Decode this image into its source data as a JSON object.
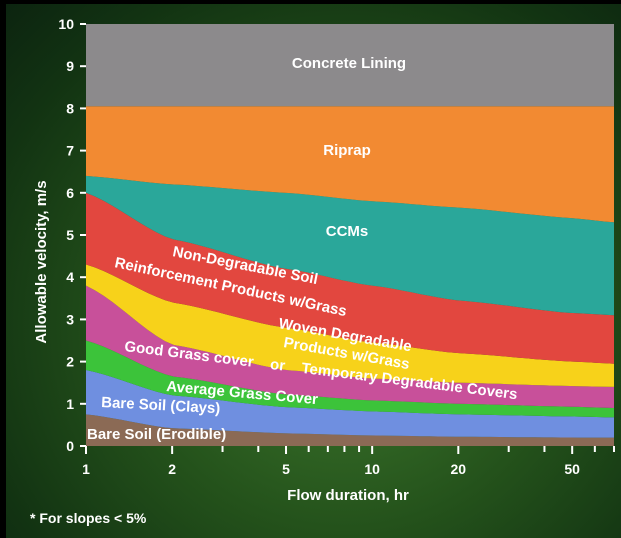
{
  "chart_data": {
    "type": "area",
    "xlabel": "Flow duration, hr",
    "ylabel": "Allowable velocity, m/s",
    "x_scale": "log",
    "xlim": [
      1,
      70
    ],
    "ylim": [
      0,
      10
    ],
    "xtick_labels": [
      "1",
      "2",
      "5",
      "10",
      "20",
      "50"
    ],
    "xtick_values": [
      1,
      2,
      5,
      10,
      20,
      50
    ],
    "minor_xticks": [
      3,
      4,
      6,
      7,
      8,
      9,
      30,
      40,
      60,
      70
    ],
    "ytick_labels": [
      "0",
      "1",
      "2",
      "3",
      "4",
      "5",
      "6",
      "7",
      "8",
      "9",
      "10"
    ],
    "x": [
      1,
      2,
      5,
      10,
      20,
      50,
      70
    ],
    "boundaries": [
      {
        "upper_of": "Bare Soil (Erodible)",
        "y": [
          0.75,
          0.42,
          0.3,
          0.25,
          0.22,
          0.2,
          0.2
        ]
      },
      {
        "upper_of": "Bare Soil (Clays)",
        "y": [
          1.8,
          1.2,
          0.92,
          0.82,
          0.75,
          0.7,
          0.68
        ]
      },
      {
        "upper_of": "Average Grass Cover",
        "y": [
          2.5,
          1.65,
          1.22,
          1.08,
          1.0,
          0.93,
          0.9
        ]
      },
      {
        "upper_of": "Good Grass cover or Temporary Degradable Covers",
        "y": [
          3.8,
          2.4,
          1.8,
          1.6,
          1.5,
          1.42,
          1.4
        ]
      },
      {
        "upper_of": "Woven Degradable Products w/Grass",
        "y": [
          4.3,
          3.4,
          2.8,
          2.45,
          2.2,
          2.0,
          1.95
        ]
      },
      {
        "upper_of": "Non-Degradable Soil Reinforcement Products w/Grass",
        "y": [
          6.0,
          4.9,
          4.2,
          3.8,
          3.45,
          3.15,
          3.1
        ]
      },
      {
        "upper_of": "CCMs",
        "y": [
          6.4,
          6.2,
          6.0,
          5.8,
          5.65,
          5.4,
          5.3
        ]
      },
      {
        "upper_of": "Riprap",
        "y": [
          8.05,
          8.05,
          8.05,
          8.05,
          8.05,
          8.05,
          8.05
        ]
      },
      {
        "upper_of": "Concrete Lining",
        "y": [
          10,
          10,
          10,
          10,
          10,
          10,
          10
        ]
      }
    ],
    "bands": [
      {
        "label": "Bare Soil (Erodible)",
        "color": "#8b6a55"
      },
      {
        "label": "Bare Soil (Clays)",
        "color": "#6f8fe0"
      },
      {
        "label": "Average Grass Cover",
        "color": "#3cc33a"
      },
      {
        "label": "Good Grass cover    or    Temporary Degradable Covers",
        "color": "#c8509a"
      },
      {
        "label": "Woven Degradable Products w/Grass",
        "color": "#f7d21a"
      },
      {
        "label": "Non-Degradable Soil Reinforcement Products w/Grass",
        "color": "#e2473f"
      },
      {
        "label": "CCMs",
        "color": "#2aa79a"
      },
      {
        "label": "Riprap",
        "color": "#f28a32"
      },
      {
        "label": "Concrete Lining",
        "color": "#8c8a8c"
      }
    ],
    "annotations": {
      "concrete": "Concrete Lining",
      "riprap": "Riprap",
      "ccms": "CCMs",
      "nondeg_line1": "Non-Degradable Soil",
      "nondeg_line2": "Reinforcement Products w/Grass",
      "woven_line1": "Woven Degradable",
      "woven_line2": "Products w/Grass",
      "goodgrass": "Good Grass cover    or    Temporary Degradable Covers",
      "avggrass": "Average Grass Cover",
      "clays": "Bare Soil (Clays)",
      "erodible": "Bare Soil (Erodible)"
    }
  },
  "footnote": "* For slopes  < 5%"
}
